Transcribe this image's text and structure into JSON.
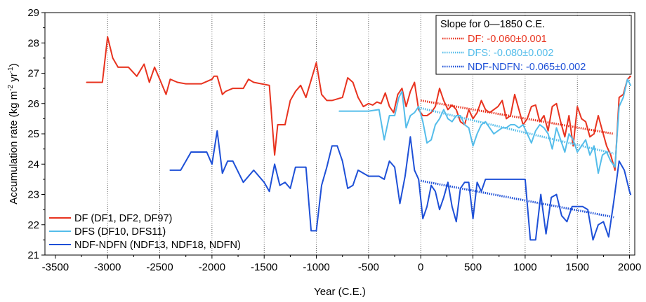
{
  "chart_data": {
    "type": "line",
    "xlabel": "Year (C.E.)",
    "ylabel_parts": {
      "a": "Accumulation rate (kg m",
      "sup1": "-2",
      "b": " yr",
      "sup2": "-1",
      "c": ")"
    },
    "xlim": [
      -3600,
      2050
    ],
    "ylim": [
      21,
      29
    ],
    "x_ticks": [
      -3500,
      -3000,
      -2500,
      -2000,
      -1500,
      -1000,
      -500,
      0,
      500,
      1000,
      1500,
      2000
    ],
    "x_tick_labels": [
      "-3500",
      "-3000",
      "-2500",
      "-2000",
      "-1500",
      "-1000",
      "-500",
      "0",
      "500",
      "1000",
      "1500",
      "2000"
    ],
    "y_ticks": [
      21,
      22,
      23,
      24,
      25,
      26,
      27,
      28,
      29
    ],
    "y_tick_labels": [
      "21",
      "22",
      "23",
      "24",
      "25",
      "26",
      "27",
      "28",
      "29"
    ],
    "grid_vertical_x": [
      -3000,
      -2500,
      -2000,
      -1500,
      -1000,
      -500,
      0,
      500,
      1000,
      1500,
      2000
    ],
    "series": [
      {
        "name": "DF (DF1, DF2, DF97)",
        "color": "#e8331f",
        "x": [
          -3200,
          -3050,
          -3000,
          -2950,
          -2900,
          -2800,
          -2720,
          -2650,
          -2600,
          -2550,
          -2500,
          -2440,
          -2400,
          -2330,
          -2250,
          -2100,
          -2000,
          -1980,
          -1950,
          -1900,
          -1870,
          -1800,
          -1700,
          -1650,
          -1600,
          -1450,
          -1420,
          -1400,
          -1370,
          -1340,
          -1300,
          -1250,
          -1200,
          -1150,
          -1100,
          -1000,
          -950,
          -900,
          -850,
          -750,
          -700,
          -650,
          -600,
          -550,
          -500,
          -460,
          -420,
          -380,
          -340,
          -300,
          -260,
          -220,
          -180,
          -140,
          -100,
          -60,
          -20,
          20,
          60,
          100,
          140,
          180,
          220,
          260,
          300,
          340,
          380,
          420,
          460,
          500,
          540,
          580,
          620,
          660,
          700,
          740,
          780,
          820,
          860,
          900,
          940,
          980,
          1020,
          1060,
          1100,
          1140,
          1180,
          1220,
          1260,
          1300,
          1340,
          1380,
          1420,
          1460,
          1500,
          1540,
          1580,
          1620,
          1660,
          1700,
          1740,
          1780,
          1820,
          1860,
          1900,
          1940,
          1980,
          2010
        ],
        "values": [
          26.7,
          26.7,
          28.2,
          27.5,
          27.2,
          27.2,
          26.9,
          27.3,
          26.7,
          27.2,
          26.8,
          26.3,
          26.8,
          26.7,
          26.65,
          26.65,
          26.8,
          26.9,
          26.9,
          26.3,
          26.4,
          26.5,
          26.5,
          26.8,
          26.7,
          26.6,
          25.2,
          24.3,
          25.3,
          25.3,
          25.3,
          26.1,
          26.4,
          26.6,
          26.2,
          27.35,
          26.3,
          26.1,
          26.1,
          26.2,
          26.85,
          26.7,
          26.2,
          25.9,
          26.0,
          25.95,
          26.05,
          26.0,
          26.35,
          25.9,
          25.7,
          26.3,
          26.5,
          25.9,
          26.4,
          26.7,
          25.8,
          25.6,
          25.6,
          25.7,
          25.9,
          26.5,
          26.1,
          25.8,
          25.95,
          25.8,
          25.4,
          25.3,
          25.8,
          25.5,
          25.7,
          26.1,
          25.8,
          25.7,
          25.8,
          25.9,
          26.1,
          25.5,
          25.6,
          26.3,
          25.8,
          25.3,
          25.5,
          25.9,
          25.95,
          25.4,
          25.6,
          25.1,
          25.9,
          26.0,
          25.4,
          24.9,
          25.6,
          24.6,
          25.9,
          25.5,
          25.4,
          24.9,
          25.0,
          25.6,
          25.1,
          24.6,
          24.3,
          23.8,
          26.2,
          26.3,
          26.8,
          26.9
        ]
      },
      {
        "name": "DFS (DF10, DFS11)",
        "color": "#55bdea",
        "x": [
          -780,
          -500,
          -400,
          -350,
          -300,
          -250,
          -210,
          -180,
          -140,
          -100,
          -60,
          -20,
          20,
          60,
          100,
          140,
          180,
          220,
          260,
          300,
          340,
          380,
          420,
          460,
          500,
          540,
          580,
          620,
          660,
          700,
          740,
          780,
          820,
          860,
          900,
          940,
          980,
          1020,
          1060,
          1100,
          1140,
          1180,
          1220,
          1260,
          1300,
          1340,
          1380,
          1420,
          1460,
          1500,
          1540,
          1580,
          1620,
          1660,
          1700,
          1740,
          1780,
          1820,
          1860,
          1900,
          1940,
          1980,
          2010
        ],
        "values": [
          25.75,
          25.75,
          25.8,
          24.8,
          25.6,
          25.6,
          26.2,
          26.4,
          25.2,
          25.6,
          25.7,
          25.9,
          25.4,
          24.7,
          24.8,
          25.3,
          25.5,
          25.8,
          25.5,
          25.4,
          25.6,
          25.6,
          25.3,
          25.2,
          24.6,
          25.0,
          25.3,
          25.4,
          25.2,
          25.0,
          25.1,
          25.2,
          25.2,
          25.3,
          25.3,
          25.2,
          25.3,
          25.0,
          24.7,
          25.1,
          25.3,
          25.2,
          25.0,
          24.5,
          25.2,
          24.8,
          24.4,
          25.0,
          24.8,
          24.4,
          24.6,
          24.8,
          24.3,
          24.6,
          23.7,
          24.3,
          24.4,
          24.1,
          23.9,
          25.9,
          26.2,
          26.8,
          26.6
        ]
      },
      {
        "name": "NDF-NDFN (NDF13, NDF18, NDFN)",
        "color": "#1e50d7",
        "x": [
          -2400,
          -2300,
          -2200,
          -2050,
          -2000,
          -1950,
          -1900,
          -1850,
          -1800,
          -1700,
          -1600,
          -1500,
          -1450,
          -1400,
          -1350,
          -1300,
          -1250,
          -1200,
          -1150,
          -1100,
          -1050,
          -1000,
          -950,
          -900,
          -850,
          -800,
          -750,
          -700,
          -650,
          -600,
          -550,
          -500,
          -450,
          -400,
          -350,
          -300,
          -250,
          -200,
          -150,
          -100,
          -60,
          -20,
          20,
          60,
          100,
          140,
          180,
          220,
          260,
          300,
          340,
          380,
          420,
          460,
          500,
          540,
          580,
          620,
          660,
          700,
          750,
          800,
          850,
          900,
          1000,
          1050,
          1100,
          1150,
          1200,
          1250,
          1300,
          1350,
          1400,
          1450,
          1500,
          1550,
          1600,
          1650,
          1700,
          1750,
          1800,
          1850,
          1900,
          1950,
          2000,
          2010
        ],
        "values": [
          23.8,
          23.8,
          24.4,
          24.4,
          24.0,
          25.1,
          23.7,
          24.1,
          24.1,
          23.4,
          23.8,
          23.4,
          23.1,
          24.0,
          23.3,
          23.4,
          23.2,
          23.9,
          23.9,
          23.9,
          21.8,
          21.8,
          23.3,
          23.9,
          24.6,
          24.6,
          24.1,
          23.2,
          23.3,
          23.8,
          23.7,
          23.6,
          23.6,
          23.6,
          23.5,
          24.1,
          23.9,
          22.7,
          23.6,
          24.9,
          23.8,
          23.5,
          22.2,
          22.6,
          23.3,
          23.1,
          22.5,
          22.9,
          23.4,
          22.6,
          22.1,
          23.2,
          23.4,
          23.4,
          22.2,
          23.4,
          23.1,
          23.5,
          23.5,
          23.5,
          23.5,
          23.5,
          23.5,
          23.5,
          23.5,
          21.5,
          21.5,
          23.0,
          21.7,
          22.9,
          23.0,
          22.3,
          22.1,
          22.6,
          22.6,
          22.6,
          22.5,
          21.5,
          22.0,
          22.1,
          21.6,
          22.8,
          24.1,
          23.8,
          23.1,
          23.0
        ]
      }
    ],
    "trend_lines": [
      {
        "color": "#e8331f",
        "x": [
          0,
          1850
        ],
        "values": [
          26.1,
          25.0
        ]
      },
      {
        "color": "#55bdea",
        "x": [
          0,
          1850
        ],
        "values": [
          25.85,
          24.35
        ]
      },
      {
        "color": "#1e50d7",
        "x": [
          0,
          1850
        ],
        "values": [
          23.45,
          22.25
        ]
      }
    ],
    "legend_placement": "bottom-left",
    "slope_box": {
      "placement": "top-right",
      "title": "Slope for 0—1850 C.E.",
      "entries": [
        {
          "label": "DF: -0.060±0.001",
          "color": "#e8331f"
        },
        {
          "label": "DFS: -0.080±0.002",
          "color": "#55bdea"
        },
        {
          "label": "NDF-NDFN: -0.065±0.002",
          "color": "#1e50d7"
        }
      ]
    }
  }
}
